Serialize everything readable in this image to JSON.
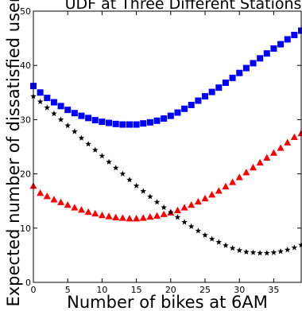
{
  "chart_data": {
    "type": "scatter",
    "title": "UDF at Three Different Stations",
    "xlabel": "Number of bikes at 6AM",
    "ylabel": "Expected number of dissatisfied users",
    "xlim": [
      0,
      39
    ],
    "ylim": [
      0,
      50
    ],
    "xticks": [
      0,
      5,
      10,
      15,
      20,
      25,
      30,
      35
    ],
    "yticks": [
      0,
      10,
      20,
      30,
      40,
      50
    ],
    "grid": false,
    "x": [
      0,
      1,
      2,
      3,
      4,
      5,
      6,
      7,
      8,
      9,
      10,
      11,
      12,
      13,
      14,
      15,
      16,
      17,
      18,
      19,
      20,
      21,
      22,
      23,
      24,
      25,
      26,
      27,
      28,
      29,
      30,
      31,
      32,
      33,
      34,
      35,
      36,
      37,
      38,
      39
    ],
    "series": [
      {
        "marker": "square",
        "color": "#0000ff",
        "values": [
          36.2,
          35.0,
          34.0,
          33.2,
          32.5,
          31.8,
          31.2,
          30.7,
          30.3,
          29.9,
          29.6,
          29.4,
          29.2,
          29.1,
          29.1,
          29.1,
          29.3,
          29.5,
          29.8,
          30.2,
          30.7,
          31.3,
          32.0,
          32.7,
          33.5,
          34.3,
          35.1,
          35.9,
          36.8,
          37.7,
          38.6,
          39.5,
          40.4,
          41.3,
          42.2,
          43.1,
          43.9,
          44.8,
          45.6,
          46.4
        ]
      },
      {
        "marker": "triangle",
        "color": "#ff0000",
        "values": [
          17.8,
          16.5,
          15.9,
          15.3,
          14.8,
          14.3,
          13.8,
          13.4,
          13.0,
          12.7,
          12.4,
          12.2,
          12.0,
          11.9,
          11.8,
          11.8,
          11.9,
          12.1,
          12.3,
          12.6,
          12.9,
          13.3,
          13.8,
          14.3,
          14.9,
          15.5,
          16.2,
          16.9,
          17.7,
          18.5,
          19.4,
          20.3,
          21.2,
          22.1,
          23.0,
          23.9,
          24.8,
          25.8,
          26.8,
          27.5
        ]
      },
      {
        "marker": "star",
        "color": "#000000",
        "values": [
          34.3,
          33.3,
          32.2,
          31.1,
          30.0,
          28.9,
          27.8,
          26.6,
          25.5,
          24.4,
          23.3,
          22.2,
          21.1,
          20.0,
          18.9,
          17.8,
          16.8,
          15.8,
          14.8,
          13.8,
          12.9,
          12.0,
          11.1,
          10.3,
          9.5,
          8.7,
          8.0,
          7.4,
          6.8,
          6.3,
          5.9,
          5.6,
          5.5,
          5.4,
          5.4,
          5.5,
          5.7,
          6.0,
          6.4,
          6.9
        ]
      }
    ]
  }
}
